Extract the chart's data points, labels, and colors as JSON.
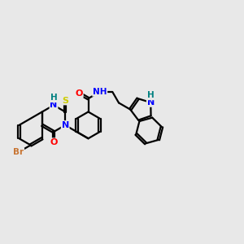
{
  "background_color": "#e8e8e8",
  "bond_color": "#000000",
  "atom_colors": {
    "Br": "#c87533",
    "O": "#ff0000",
    "N": "#0000ff",
    "S": "#cccc00",
    "H_label": "#008080",
    "C": "#000000"
  },
  "figsize": [
    3.0,
    3.0
  ],
  "dpi": 100,
  "xlim": [
    -3.3,
    3.6
  ],
  "ylim": [
    -1.8,
    1.6
  ]
}
